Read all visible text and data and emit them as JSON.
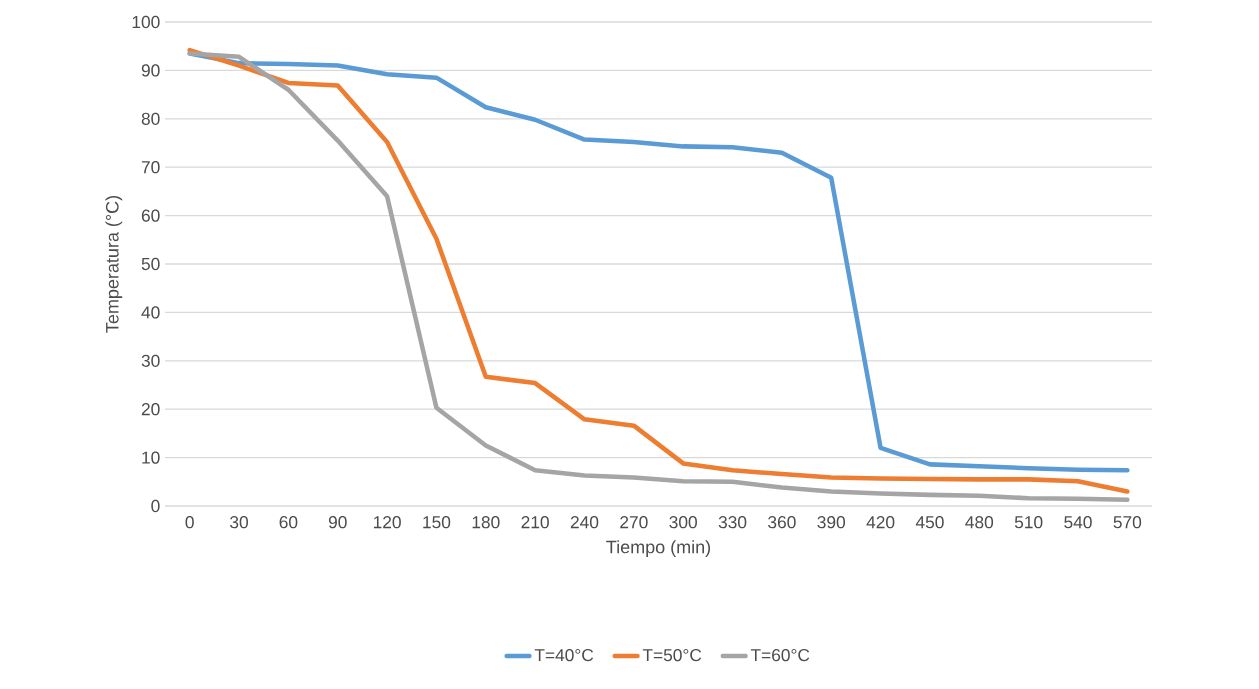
{
  "chart_data": {
    "type": "line",
    "xlabel": "Tiempo (min)",
    "ylabel": "Temperatura  (°C)",
    "categories": [
      "0",
      "30",
      "60",
      "90",
      "120",
      "150",
      "180",
      "210",
      "240",
      "270",
      "300",
      "330",
      "360",
      "390",
      "420",
      "450",
      "480",
      "510",
      "540",
      "570"
    ],
    "series": [
      {
        "name": "T=40°C",
        "color": "#5b9bd5",
        "values": [
          93.5,
          91.5,
          91.3,
          91,
          89.2,
          88.5,
          82.4,
          79.8,
          75.7,
          75.2,
          74.3,
          74.1,
          73,
          67.8,
          12,
          8.6,
          8.2,
          7.8,
          7.5,
          7.4
        ]
      },
      {
        "name": "T=50°C",
        "color": "#ed7d31",
        "values": [
          94.2,
          91,
          87.4,
          86.9,
          75.2,
          55.2,
          26.7,
          25.4,
          17.9,
          16.6,
          8.8,
          7.4,
          6.6,
          5.9,
          5.7,
          5.6,
          5.5,
          5.5,
          5.1,
          3.0
        ]
      },
      {
        "name": "T=60°C",
        "color": "#a5a5a5",
        "values": [
          93.5,
          92.8,
          86,
          75.5,
          64,
          20.3,
          12.5,
          7.4,
          6.3,
          5.9,
          5.1,
          5,
          3.8,
          3,
          2.6,
          2.3,
          2.1,
          1.6,
          1.5,
          1.3
        ]
      }
    ],
    "ylim": [
      0,
      100
    ],
    "yticks": [
      0,
      10,
      20,
      30,
      40,
      50,
      60,
      70,
      80,
      90,
      100
    ],
    "grid": "y",
    "legend": "bottom",
    "marker": "none",
    "line_style": "solid"
  }
}
